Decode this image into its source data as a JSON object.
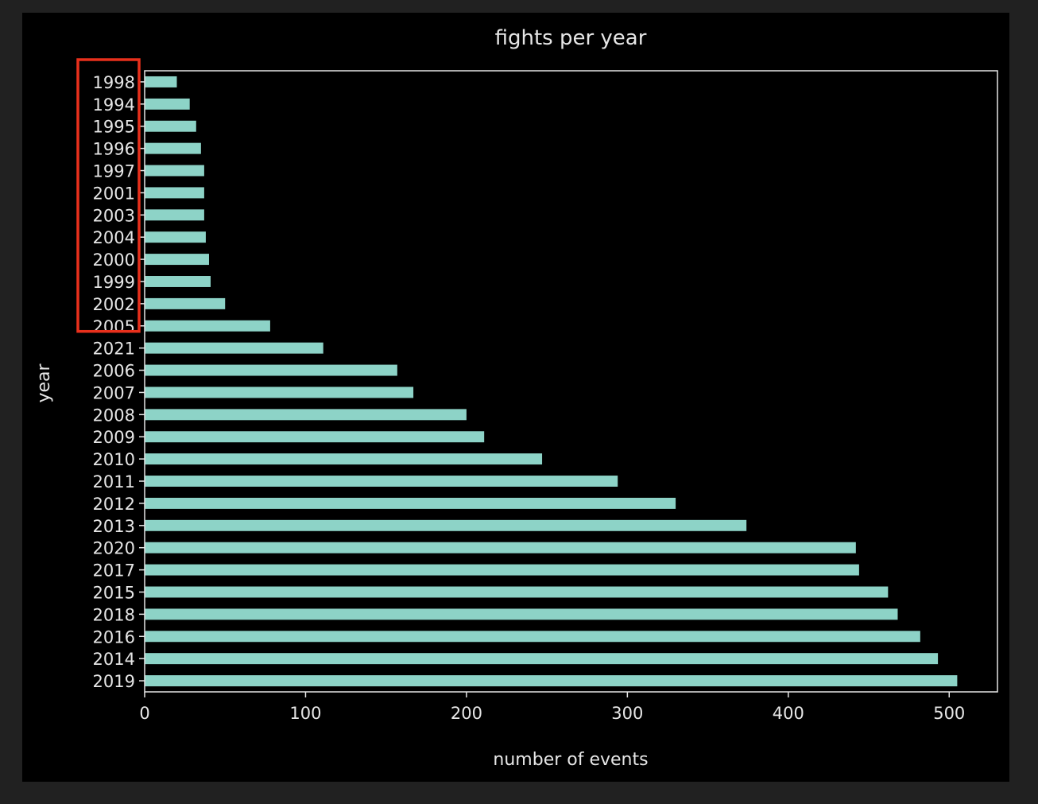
{
  "colors": {
    "figure_background": "#000000",
    "page_border": "#212121",
    "bar": "#8dd3c7",
    "axis": "#e6e6e6",
    "text": "#e6e6e6",
    "highlight": "#e8301c"
  },
  "chart_data": {
    "type": "bar",
    "orientation": "horizontal",
    "title": "fights per year",
    "xlabel": "number of events",
    "ylabel": "year",
    "xlim": [
      0,
      530
    ],
    "xticks": [
      0,
      100,
      200,
      300,
      400,
      500
    ],
    "grid": false,
    "legend": "none",
    "categories": [
      "1998",
      "1994",
      "1995",
      "1996",
      "1997",
      "2001",
      "2003",
      "2004",
      "2000",
      "1999",
      "2002",
      "2005",
      "2021",
      "2006",
      "2007",
      "2008",
      "2009",
      "2010",
      "2011",
      "2012",
      "2013",
      "2020",
      "2017",
      "2015",
      "2018",
      "2016",
      "2014",
      "2019"
    ],
    "values": [
      20,
      28,
      32,
      35,
      37,
      37,
      37,
      38,
      40,
      41,
      50,
      78,
      111,
      157,
      167,
      200,
      211,
      247,
      294,
      330,
      374,
      442,
      444,
      462,
      468,
      482,
      493,
      505
    ],
    "highlighted_categories": [
      "1998",
      "1994",
      "1995",
      "1996",
      "1997",
      "2001",
      "2003",
      "2004",
      "2000",
      "1999",
      "2002",
      "2005"
    ]
  }
}
